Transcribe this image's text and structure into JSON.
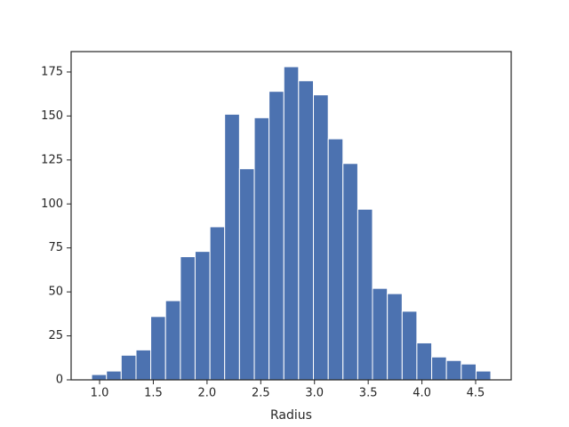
{
  "chart_data": {
    "type": "histogram",
    "xlabel": "Radius",
    "color": "#4c72b0",
    "bins": [
      0.926,
      1.064,
      1.201,
      1.339,
      1.476,
      1.614,
      1.752,
      1.889,
      2.027,
      2.164,
      2.302,
      2.44,
      2.577,
      2.715,
      2.852,
      2.99,
      3.128,
      3.265,
      3.403,
      3.54,
      3.678,
      3.816,
      3.953,
      4.091,
      4.228,
      4.366,
      4.504,
      4.641
    ],
    "counts": [
      3,
      5,
      14,
      17,
      36,
      45,
      70,
      73,
      87,
      151,
      120,
      149,
      164,
      178,
      170,
      162,
      137,
      123,
      97,
      52,
      49,
      39,
      21,
      13,
      11,
      9,
      5
    ],
    "xlim": [
      0.735,
      4.831
    ],
    "ylim": [
      0,
      186.6
    ],
    "xticks": [
      {
        "value": 1,
        "label": "1.0"
      },
      {
        "value": 1.5,
        "label": "1.5"
      },
      {
        "value": 2,
        "label": "2.0"
      },
      {
        "value": 2.5,
        "label": "2.5"
      },
      {
        "value": 3,
        "label": "3.0"
      },
      {
        "value": 3.5,
        "label": "3.5"
      },
      {
        "value": 4,
        "label": "4.0"
      },
      {
        "value": 4.5,
        "label": "4.5"
      }
    ],
    "yticks": [
      0,
      25,
      50,
      75,
      100,
      125,
      150,
      175
    ],
    "grid": false
  }
}
